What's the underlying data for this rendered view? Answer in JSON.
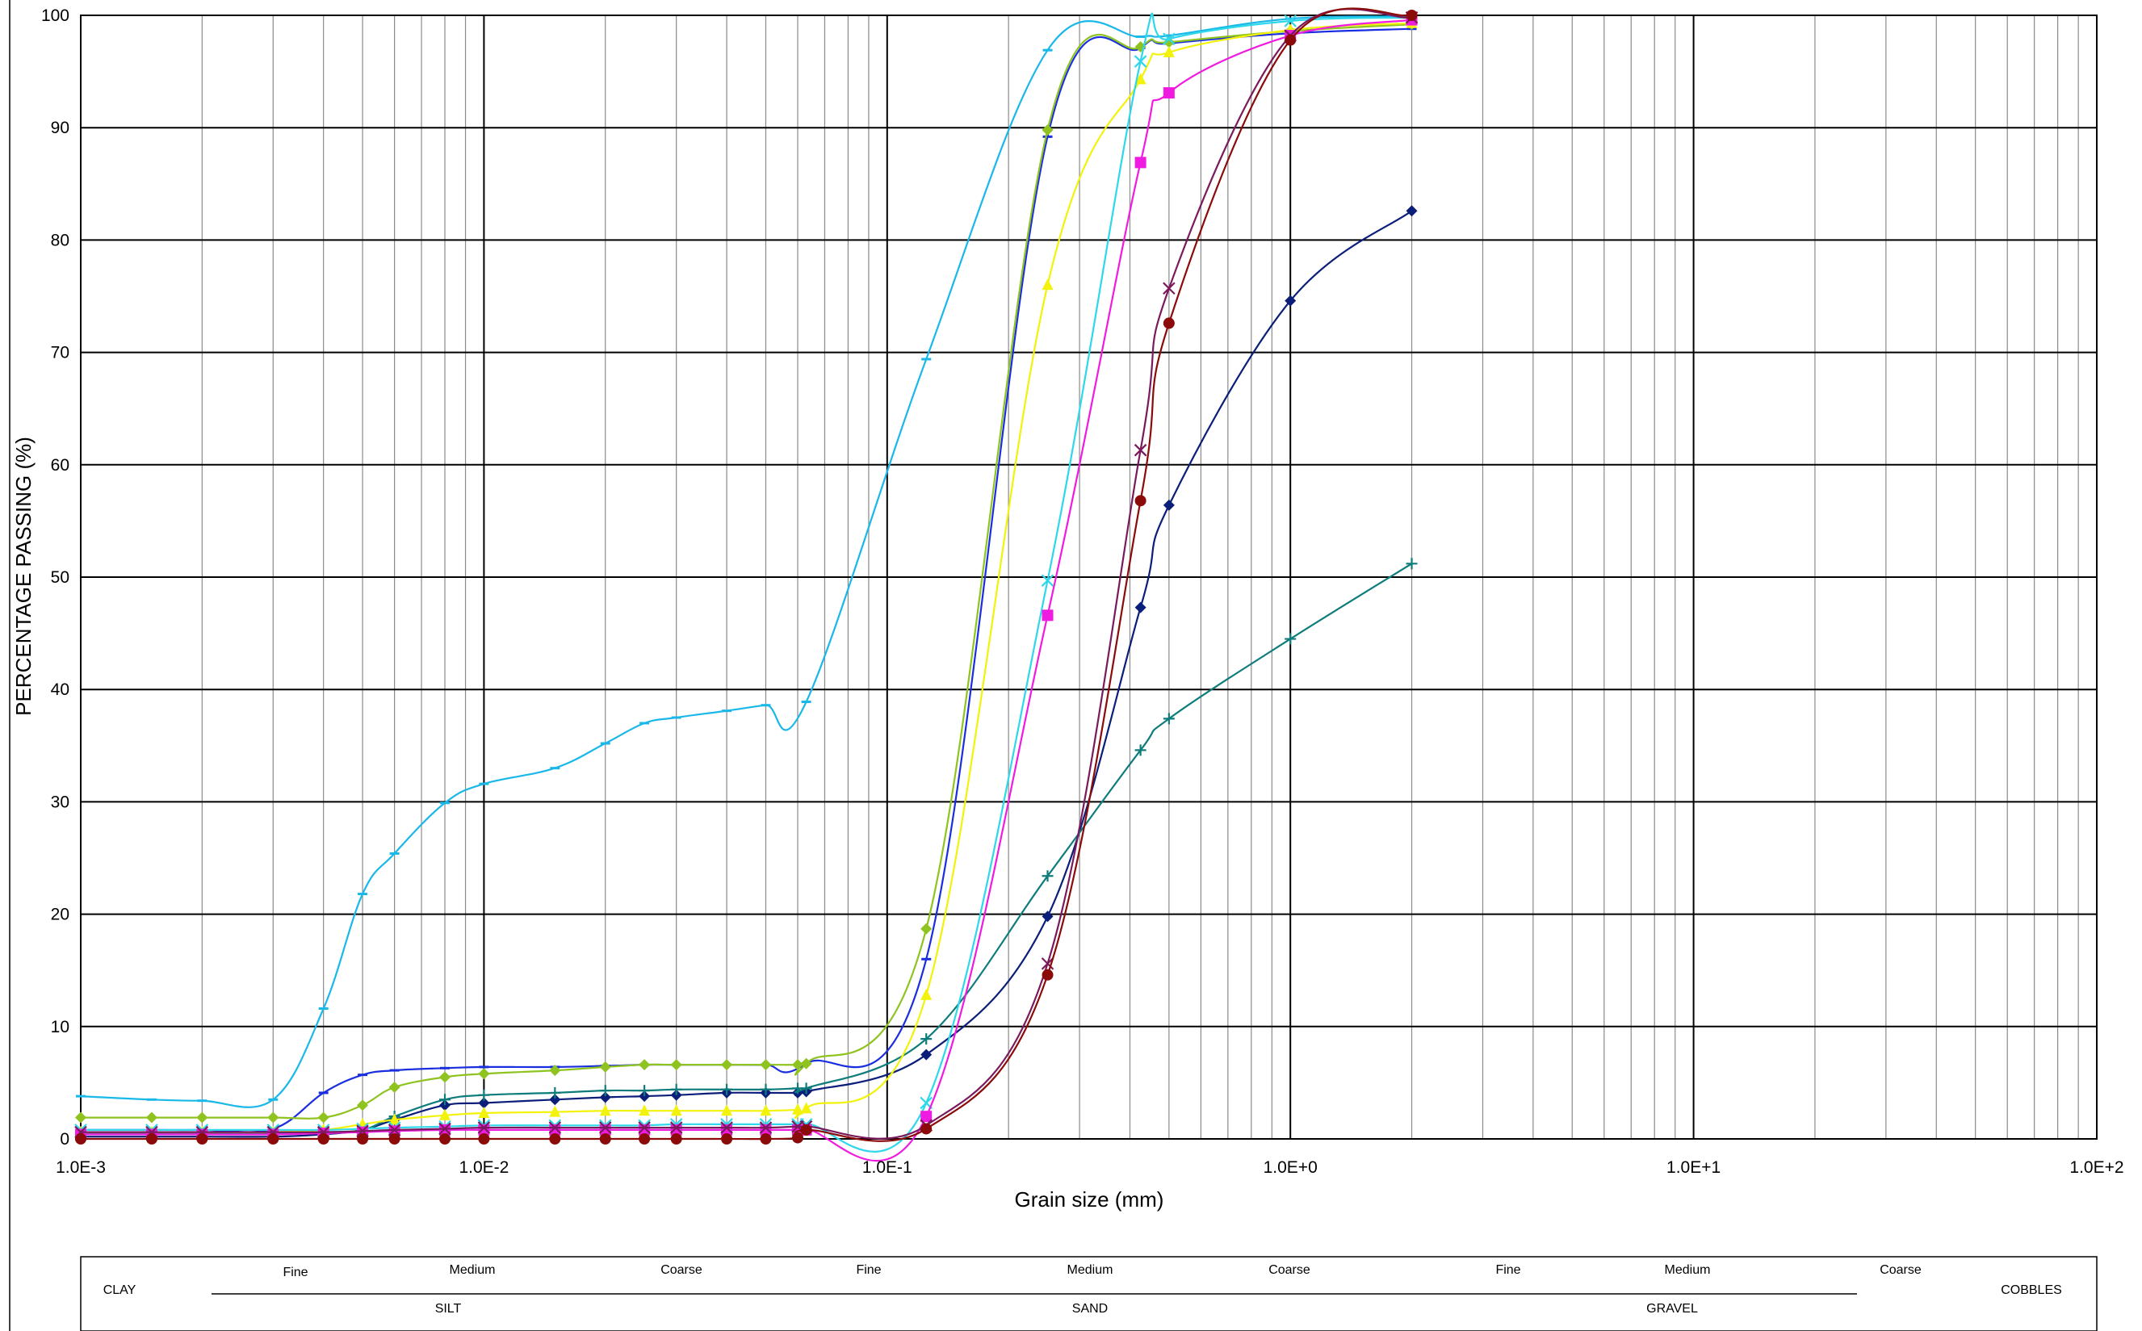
{
  "chart_data": {
    "type": "line",
    "x_scale": "log",
    "xlim": [
      0.001,
      100
    ],
    "ylim": [
      0,
      100
    ],
    "grid": true,
    "xlabel": "Grain size (mm)",
    "ylabel": "PERCENTAGE PASSING (%)",
    "x_tick_labels": [
      {
        "value": 0.001,
        "label": "1.0E-3"
      },
      {
        "value": 0.01,
        "label": "1.0E-2"
      },
      {
        "value": 0.1,
        "label": "1.0E-1"
      },
      {
        "value": 1,
        "label": "1.0E+0"
      },
      {
        "value": 10,
        "label": "1.0E+1"
      },
      {
        "value": 100,
        "label": "1.0E+2"
      }
    ],
    "y_tick_labels": [
      {
        "value": 0,
        "label": "0"
      },
      {
        "value": 10,
        "label": "10"
      },
      {
        "value": 20,
        "label": "20"
      },
      {
        "value": 30,
        "label": "30"
      },
      {
        "value": 40,
        "label": "40"
      },
      {
        "value": 50,
        "label": "50"
      },
      {
        "value": 60,
        "label": "60"
      },
      {
        "value": 70,
        "label": "70"
      },
      {
        "value": 80,
        "label": "80"
      },
      {
        "value": 90,
        "label": "90"
      },
      {
        "value": 100,
        "label": "100"
      }
    ],
    "series": [
      {
        "color": "#1ab8e8",
        "marker": "dash",
        "points": [
          [
            0.001,
            3.8
          ],
          [
            0.0015,
            3.5
          ],
          [
            0.002,
            3.4
          ],
          [
            0.003,
            3.5
          ],
          [
            0.004,
            11.6
          ],
          [
            0.005,
            21.8
          ],
          [
            0.006,
            25.4
          ],
          [
            0.008,
            29.9
          ],
          [
            0.01,
            31.6
          ],
          [
            0.015,
            33.0
          ],
          [
            0.02,
            35.2
          ],
          [
            0.025,
            37.0
          ],
          [
            0.03,
            37.5
          ],
          [
            0.04,
            38.1
          ],
          [
            0.05,
            38.6
          ],
          [
            0.063,
            38.9
          ],
          [
            0.125,
            69.4
          ],
          [
            0.25,
            96.9
          ],
          [
            0.425,
            98.1
          ],
          [
            0.5,
            98.2
          ],
          [
            1.0,
            99.7
          ],
          [
            2.0,
            99.9
          ]
        ]
      },
      {
        "color": "#1a2ee0",
        "marker": "dash",
        "points": [
          [
            0.001,
            0.8
          ],
          [
            0.0015,
            0.8
          ],
          [
            0.002,
            0.8
          ],
          [
            0.003,
            0.9
          ],
          [
            0.004,
            4.1
          ],
          [
            0.005,
            5.7
          ],
          [
            0.006,
            6.1
          ],
          [
            0.008,
            6.3
          ],
          [
            0.01,
            6.4
          ],
          [
            0.015,
            6.4
          ],
          [
            0.02,
            6.5
          ],
          [
            0.025,
            6.6
          ],
          [
            0.03,
            6.6
          ],
          [
            0.04,
            6.6
          ],
          [
            0.05,
            6.6
          ],
          [
            0.063,
            6.7
          ],
          [
            0.125,
            16.0
          ],
          [
            0.25,
            89.2
          ],
          [
            0.425,
            97.1
          ],
          [
            0.5,
            97.5
          ],
          [
            1.0,
            98.4
          ],
          [
            2.0,
            98.8
          ]
        ]
      },
      {
        "color": "#8fc31f",
        "marker": "diamond",
        "points": [
          [
            0.001,
            1.9
          ],
          [
            0.0015,
            1.9
          ],
          [
            0.002,
            1.9
          ],
          [
            0.003,
            1.9
          ],
          [
            0.004,
            1.9
          ],
          [
            0.005,
            3.0
          ],
          [
            0.006,
            4.6
          ],
          [
            0.008,
            5.5
          ],
          [
            0.01,
            5.8
          ],
          [
            0.015,
            6.1
          ],
          [
            0.02,
            6.4
          ],
          [
            0.025,
            6.6
          ],
          [
            0.03,
            6.6
          ],
          [
            0.04,
            6.6
          ],
          [
            0.05,
            6.6
          ],
          [
            0.06,
            6.6
          ],
          [
            0.063,
            6.7
          ],
          [
            0.125,
            18.7
          ],
          [
            0.25,
            89.8
          ],
          [
            0.425,
            97.2
          ],
          [
            0.5,
            97.6
          ],
          [
            1.0,
            98.6
          ],
          [
            2.0,
            99.2
          ]
        ]
      },
      {
        "color": "#0a1e7a",
        "marker": "diamond",
        "points": [
          [
            0.001,
            0.2
          ],
          [
            0.0015,
            0.2
          ],
          [
            0.002,
            0.2
          ],
          [
            0.003,
            0.2
          ],
          [
            0.004,
            0.4
          ],
          [
            0.005,
            0.8
          ],
          [
            0.006,
            1.7
          ],
          [
            0.008,
            3.0
          ],
          [
            0.01,
            3.2
          ],
          [
            0.015,
            3.5
          ],
          [
            0.02,
            3.7
          ],
          [
            0.025,
            3.8
          ],
          [
            0.03,
            3.9
          ],
          [
            0.04,
            4.1
          ],
          [
            0.05,
            4.1
          ],
          [
            0.06,
            4.1
          ],
          [
            0.063,
            4.2
          ],
          [
            0.125,
            7.5
          ],
          [
            0.25,
            19.8
          ],
          [
            0.425,
            47.3
          ],
          [
            0.5,
            56.4
          ],
          [
            1.0,
            74.6
          ],
          [
            2.0,
            82.6
          ]
        ]
      },
      {
        "color": "#0f7c7c",
        "marker": "plus",
        "points": [
          [
            0.001,
            0.5
          ],
          [
            0.0015,
            0.5
          ],
          [
            0.002,
            0.5
          ],
          [
            0.003,
            0.5
          ],
          [
            0.004,
            0.6
          ],
          [
            0.005,
            0.8
          ],
          [
            0.006,
            2.0
          ],
          [
            0.008,
            3.5
          ],
          [
            0.01,
            3.9
          ],
          [
            0.015,
            4.1
          ],
          [
            0.02,
            4.3
          ],
          [
            0.025,
            4.3
          ],
          [
            0.03,
            4.4
          ],
          [
            0.04,
            4.4
          ],
          [
            0.05,
            4.4
          ],
          [
            0.06,
            4.5
          ],
          [
            0.063,
            4.5
          ],
          [
            0.125,
            8.9
          ],
          [
            0.25,
            23.4
          ],
          [
            0.425,
            34.6
          ],
          [
            0.5,
            37.4
          ],
          [
            1.0,
            44.5
          ],
          [
            2.0,
            51.2
          ]
        ]
      },
      {
        "color": "#f2f20a",
        "marker": "triangle",
        "points": [
          [
            0.001,
            0.6
          ],
          [
            0.0015,
            0.6
          ],
          [
            0.002,
            0.6
          ],
          [
            0.003,
            0.6
          ],
          [
            0.004,
            0.8
          ],
          [
            0.005,
            1.3
          ],
          [
            0.006,
            1.7
          ],
          [
            0.008,
            2.1
          ],
          [
            0.01,
            2.3
          ],
          [
            0.015,
            2.4
          ],
          [
            0.02,
            2.5
          ],
          [
            0.025,
            2.5
          ],
          [
            0.03,
            2.5
          ],
          [
            0.04,
            2.5
          ],
          [
            0.05,
            2.5
          ],
          [
            0.06,
            2.6
          ],
          [
            0.063,
            2.7
          ],
          [
            0.125,
            12.8
          ],
          [
            0.25,
            76.0
          ],
          [
            0.425,
            94.3
          ],
          [
            0.5,
            96.7
          ],
          [
            1.0,
            98.7
          ],
          [
            2.0,
            99.3
          ]
        ]
      },
      {
        "color": "#2ed7ea",
        "marker": "x",
        "points": [
          [
            0.001,
            0.8
          ],
          [
            0.0015,
            0.8
          ],
          [
            0.002,
            0.8
          ],
          [
            0.003,
            0.8
          ],
          [
            0.004,
            0.8
          ],
          [
            0.005,
            0.9
          ],
          [
            0.006,
            1.0
          ],
          [
            0.008,
            1.1
          ],
          [
            0.01,
            1.2
          ],
          [
            0.015,
            1.2
          ],
          [
            0.02,
            1.2
          ],
          [
            0.025,
            1.2
          ],
          [
            0.03,
            1.3
          ],
          [
            0.04,
            1.3
          ],
          [
            0.05,
            1.3
          ],
          [
            0.06,
            1.3
          ],
          [
            0.063,
            1.3
          ],
          [
            0.125,
            3.2
          ],
          [
            0.25,
            49.7
          ],
          [
            0.425,
            95.9
          ],
          [
            0.5,
            97.9
          ],
          [
            1.0,
            99.5
          ],
          [
            2.0,
            99.8
          ]
        ]
      },
      {
        "color": "#f01be0",
        "marker": "square",
        "points": [
          [
            0.001,
            0.4
          ],
          [
            0.0015,
            0.4
          ],
          [
            0.002,
            0.4
          ],
          [
            0.003,
            0.4
          ],
          [
            0.004,
            0.5
          ],
          [
            0.005,
            0.6
          ],
          [
            0.006,
            0.7
          ],
          [
            0.008,
            0.8
          ],
          [
            0.01,
            0.8
          ],
          [
            0.015,
            0.8
          ],
          [
            0.02,
            0.8
          ],
          [
            0.025,
            0.8
          ],
          [
            0.03,
            0.8
          ],
          [
            0.04,
            0.8
          ],
          [
            0.05,
            0.8
          ],
          [
            0.06,
            0.8
          ],
          [
            0.063,
            0.8
          ],
          [
            0.125,
            2.0
          ],
          [
            0.25,
            46.6
          ],
          [
            0.425,
            86.9
          ],
          [
            0.5,
            93.1
          ],
          [
            1.0,
            98.2
          ],
          [
            2.0,
            99.6
          ]
        ]
      },
      {
        "color": "#7a1a5c",
        "marker": "x",
        "points": [
          [
            0.001,
            0.6
          ],
          [
            0.0015,
            0.6
          ],
          [
            0.002,
            0.6
          ],
          [
            0.003,
            0.6
          ],
          [
            0.004,
            0.6
          ],
          [
            0.005,
            0.7
          ],
          [
            0.006,
            0.8
          ],
          [
            0.008,
            0.9
          ],
          [
            0.01,
            1.0
          ],
          [
            0.015,
            1.0
          ],
          [
            0.02,
            1.0
          ],
          [
            0.025,
            1.0
          ],
          [
            0.03,
            1.0
          ],
          [
            0.04,
            1.0
          ],
          [
            0.05,
            1.0
          ],
          [
            0.06,
            1.1
          ],
          [
            0.063,
            1.1
          ],
          [
            0.125,
            1.2
          ],
          [
            0.25,
            15.6
          ],
          [
            0.425,
            61.3
          ],
          [
            0.5,
            75.7
          ],
          [
            1.0,
            98.2
          ],
          [
            2.0,
            99.8
          ]
        ]
      },
      {
        "color": "#8b0a0a",
        "marker": "circle",
        "points": [
          [
            0.001,
            0.0
          ],
          [
            0.0015,
            0.0
          ],
          [
            0.002,
            0.0
          ],
          [
            0.003,
            0.0
          ],
          [
            0.004,
            0.0
          ],
          [
            0.005,
            0.0
          ],
          [
            0.006,
            0.0
          ],
          [
            0.008,
            0.0
          ],
          [
            0.01,
            0.0
          ],
          [
            0.015,
            0.0
          ],
          [
            0.02,
            0.0
          ],
          [
            0.025,
            0.0
          ],
          [
            0.03,
            0.0
          ],
          [
            0.04,
            0.0
          ],
          [
            0.05,
            0.0
          ],
          [
            0.06,
            0.1
          ],
          [
            0.063,
            0.8
          ],
          [
            0.125,
            0.9
          ],
          [
            0.25,
            14.6
          ],
          [
            0.425,
            56.8
          ],
          [
            0.5,
            72.6
          ],
          [
            1.0,
            97.8
          ],
          [
            2.0,
            100.0
          ]
        ]
      }
    ],
    "classification": {
      "clay": "CLAY",
      "silt": "SILT",
      "sand": "SAND",
      "gravel": "GRAVEL",
      "cobbles": "COBBLES",
      "fine": "Fine",
      "medium": "Medium",
      "coarse": "Coarse"
    }
  }
}
